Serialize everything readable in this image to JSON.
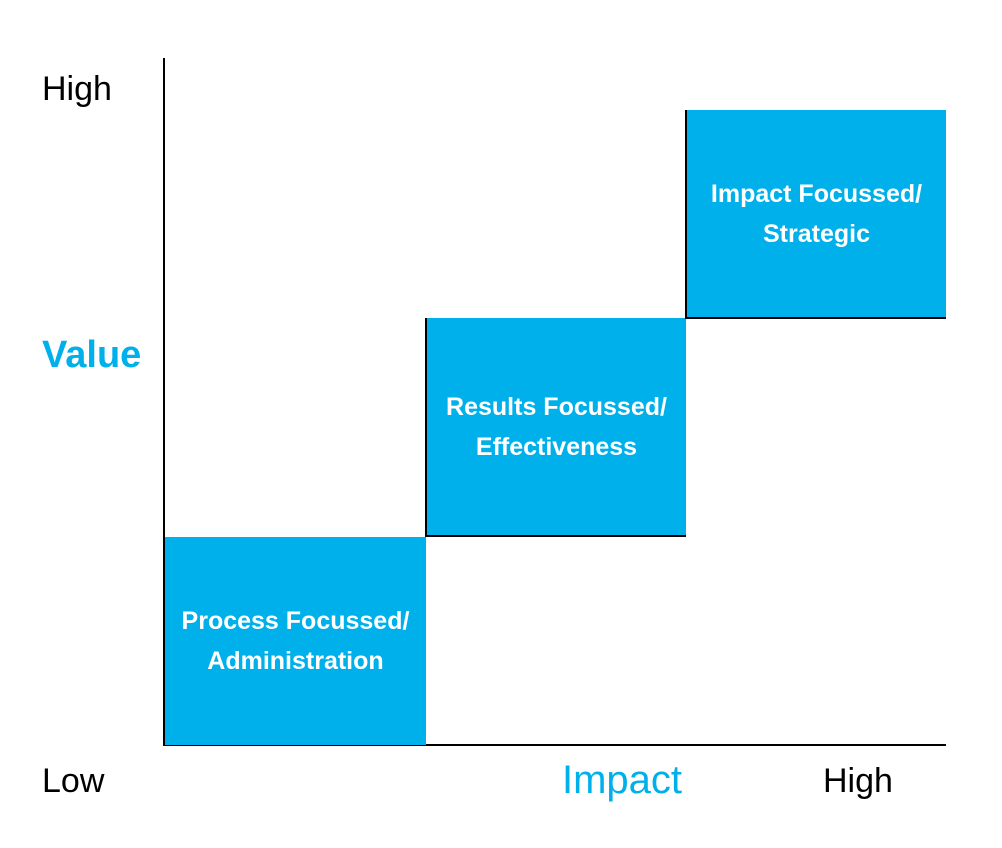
{
  "diagram": {
    "y_axis": {
      "title": "Value",
      "high_label": "High"
    },
    "x_axis": {
      "title": "Impact",
      "low_label": "Low",
      "high_label": "High"
    },
    "steps": [
      {
        "line1": "Process Focussed/",
        "line2": "Administration"
      },
      {
        "line1": "Results Focussed/",
        "line2": "Effectiveness"
      },
      {
        "line1": "Impact Focussed/",
        "line2": "Strategic"
      }
    ],
    "colors": {
      "accent": "#00b0eb",
      "box_text": "#ffffff",
      "axis": "#000000"
    }
  }
}
